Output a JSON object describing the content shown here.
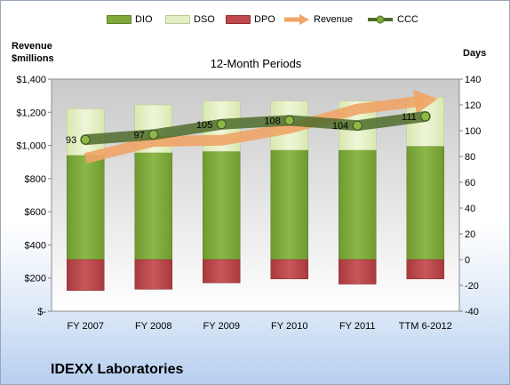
{
  "legend": [
    {
      "label": "DIO",
      "color": "#7faa3b",
      "kind": "box"
    },
    {
      "label": "DSO",
      "color": "#e3f0c4",
      "kind": "box"
    },
    {
      "label": "DPO",
      "color": "#c0474a",
      "kind": "box"
    },
    {
      "label": "Revenue",
      "color": "#f0a466",
      "kind": "arrow"
    },
    {
      "label": "CCC",
      "color": "#4f6b2b",
      "kind": "line-dot"
    }
  ],
  "axis": {
    "left_title_line1": "Revenue",
    "left_title_line2": "$millions",
    "right_title": "Days"
  },
  "chart_subtitle": "12-Month Periods",
  "company_name": "IDEXX Laboratories",
  "chart_data": {
    "type": "bar",
    "subtitle": "12-Month Periods",
    "categories": [
      "FY 2007",
      "FY 2008",
      "FY 2009",
      "FY 2010",
      "FY 2011",
      "TTM 6-2012"
    ],
    "left_axis": {
      "label": "Revenue $millions",
      "ylim": [
        0,
        1400
      ],
      "ticks": [
        0,
        200,
        400,
        600,
        800,
        1000,
        1200,
        1400
      ],
      "tick_labels": [
        "$-",
        "$200",
        "$400",
        "$600",
        "$800",
        "$1,000",
        "$1,200",
        "$1,400"
      ]
    },
    "right_axis": {
      "label": "Days",
      "ylim": [
        -40,
        140
      ],
      "ticks": [
        -40,
        -20,
        0,
        20,
        40,
        60,
        80,
        100,
        120,
        140
      ],
      "tick_labels": [
        "-40",
        "-20",
        "0",
        "20",
        "40",
        "60",
        "80",
        "100",
        "120",
        "140"
      ]
    },
    "series": [
      {
        "name": "DIO",
        "axis": "right",
        "type": "stacked-bar",
        "color": "#7faa3b",
        "values": [
          81,
          83,
          84,
          85,
          85,
          88
        ]
      },
      {
        "name": "DSO",
        "axis": "right",
        "type": "stacked-bar",
        "color": "#e3f0c4",
        "values": [
          36,
          37,
          39,
          38,
          38,
          38
        ]
      },
      {
        "name": "DPO",
        "axis": "right",
        "type": "bar-negative",
        "color": "#c0474a",
        "values": [
          -24,
          -23,
          -18,
          -15,
          -19,
          -15
        ]
      },
      {
        "name": "Revenue",
        "axis": "left",
        "type": "line-arrow",
        "color": "#f0a466",
        "values": [
          922,
          1024,
          1031,
          1103,
          1219,
          1271
        ]
      },
      {
        "name": "CCC",
        "axis": "right",
        "type": "line-markers",
        "color": "#4f6b2b",
        "values": [
          93,
          97,
          105,
          108,
          104,
          111
        ],
        "data_labels": [
          "93",
          "97",
          "105",
          "108",
          "104",
          "111"
        ]
      }
    ],
    "grid": false,
    "legend_position": "top"
  }
}
